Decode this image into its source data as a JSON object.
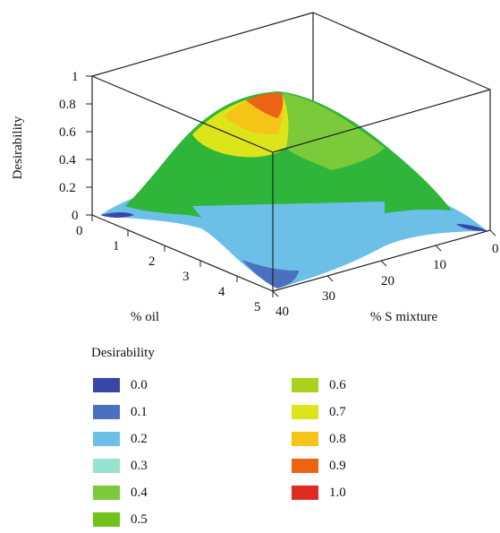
{
  "chart_data": {
    "type": "3d-surface",
    "zlabel": "Desirability",
    "xlabel": "% oil",
    "ylabel": "% S mixture",
    "z_ticks": [
      "0",
      "0.2",
      "0.4",
      "0.6",
      "0.8",
      "1"
    ],
    "x_ticks": [
      "0",
      "1",
      "2",
      "3",
      "4",
      "5"
    ],
    "y_ticks": [
      "40",
      "30",
      "20",
      "10",
      "0"
    ],
    "zlim": [
      0,
      1
    ],
    "xlim": [
      0,
      5
    ],
    "ylim": [
      0,
      40
    ],
    "peak": {
      "oil": 2.5,
      "s_mixture": 20,
      "desirability": 0.95
    },
    "legend": {
      "title": "Desirability",
      "entries": [
        {
          "label": "0.0",
          "color": "#3a45a8"
        },
        {
          "label": "0.1",
          "color": "#4a70c0"
        },
        {
          "label": "0.2",
          "color": "#6cc0e8"
        },
        {
          "label": "0.3",
          "color": "#96e3cf"
        },
        {
          "label": "0.4",
          "color": "#7bca3a"
        },
        {
          "label": "0.5",
          "color": "#6fc31a"
        },
        {
          "label": "0.6",
          "color": "#a8d21c"
        },
        {
          "label": "0.7",
          "color": "#dde41a"
        },
        {
          "label": "0.8",
          "color": "#f5c417"
        },
        {
          "label": "0.9",
          "color": "#ec6314"
        },
        {
          "label": "1.0",
          "color": "#df2b22"
        }
      ]
    }
  }
}
